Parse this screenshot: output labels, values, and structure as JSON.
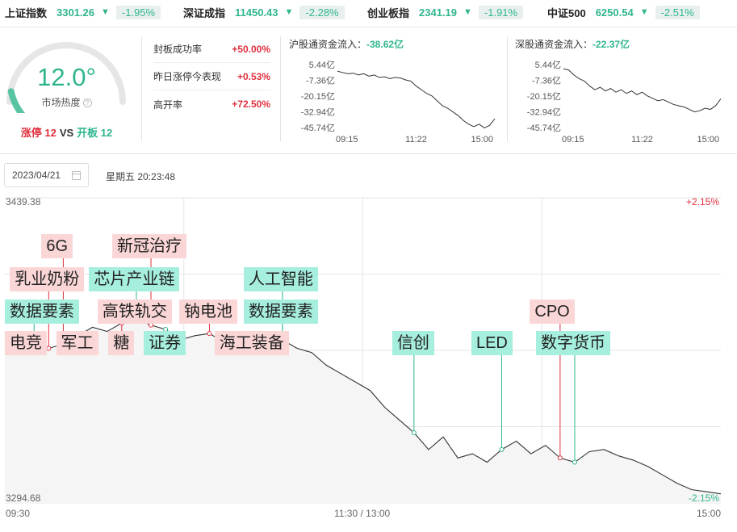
{
  "indices": [
    {
      "name": "上证指数",
      "value": "3301.26",
      "arrow": "▼",
      "change": "-1.95%"
    },
    {
      "name": "深证成指",
      "value": "11450.43",
      "arrow": "▼",
      "change": "-2.28%"
    },
    {
      "name": "创业板指",
      "value": "2341.19",
      "arrow": "▼",
      "change": "-1.91%"
    },
    {
      "name": "中证500",
      "value": "6250.54",
      "arrow": "▼",
      "change": "-2.51%"
    }
  ],
  "heat": {
    "value": "12.0°",
    "value_num": 12.0,
    "label": "市场热度",
    "help_icon": "question-circle-icon",
    "limit_up_label": "涨停 12",
    "vs": "VS",
    "open_board_label": "开板 12"
  },
  "stats": [
    {
      "label": "封板成功率",
      "value": "+50.00%"
    },
    {
      "label": "昨日涨停今表现",
      "value": "+0.53%"
    },
    {
      "label": "高开率",
      "value": "+72.50%"
    }
  ],
  "flows": [
    {
      "title": "沪股通资金流入：",
      "amount": "-38.62亿",
      "y_ticks": [
        "5.44亿",
        "-7.36亿",
        "-20.15亿",
        "-32.94亿",
        "-45.74亿"
      ],
      "x_ticks": [
        "09:15",
        "11:22",
        "15:00"
      ],
      "series": [
        0,
        -1,
        -2,
        -1.5,
        -3,
        -2,
        -4,
        -3,
        -5,
        -4.5,
        -6,
        -5,
        -5.5,
        -7,
        -8,
        -12,
        -15,
        -18,
        -20,
        -24,
        -28,
        -30,
        -33,
        -36,
        -40,
        -43,
        -45,
        -43,
        -46,
        -44,
        -38.6
      ]
    },
    {
      "title": "深股通资金流入：",
      "amount": "-22.37亿",
      "y_ticks": [
        "5.44亿",
        "-7.36亿",
        "-20.15亿",
        "-32.94亿",
        "-45.74亿"
      ],
      "x_ticks": [
        "09:15",
        "11:22",
        "15:00"
      ],
      "series": [
        2,
        1,
        -3,
        -6,
        -8,
        -12,
        -15,
        -13,
        -16,
        -14,
        -17,
        -15,
        -18,
        -16,
        -19,
        -17,
        -20,
        -22,
        -24,
        -23,
        -25,
        -27,
        -28,
        -29,
        -31,
        -33,
        -32,
        -30,
        -31,
        -28,
        -22.4
      ]
    }
  ],
  "date": {
    "value": "2023/04/21",
    "calendar_icon": "calendar-icon",
    "weekday_time": "星期五 20:23:48"
  },
  "chart_data": {
    "type": "line",
    "y_max_label": "3439.38",
    "y_min_label": "3294.68",
    "y_max_pct": "+2.15%",
    "y_min_pct": "-2.15%",
    "ylim": [
      3294.68,
      3439.38
    ],
    "x_ticks": [
      "09:30",
      "11:30 / 13:00",
      "15:00"
    ],
    "values": [
      3375,
      3369,
      3372,
      3368,
      3370,
      3374,
      3378,
      3376,
      3380,
      3382,
      3379,
      3377,
      3372,
      3374,
      3375,
      3371,
      3373,
      3370,
      3374,
      3372,
      3368,
      3366,
      3360,
      3356,
      3352,
      3348,
      3340,
      3334,
      3328,
      3320,
      3326,
      3316,
      3318,
      3314,
      3320,
      3324,
      3318,
      3322,
      3316,
      3314,
      3319,
      3320,
      3317,
      3315,
      3312,
      3308,
      3304,
      3301,
      3300,
      3299
    ],
    "events": [
      {
        "label": "电竞",
        "color": "red",
        "idx": 1
      },
      {
        "label": "数据要素",
        "color": "green",
        "idx": 2
      },
      {
        "label": "乳业奶粉",
        "color": "red",
        "idx": 3
      },
      {
        "label": "6G",
        "color": "red",
        "idx": 4
      },
      {
        "label": "军工",
        "color": "red",
        "idx": 5
      },
      {
        "label": "糖",
        "color": "red",
        "idx": 8
      },
      {
        "label": "高铁轨交",
        "color": "red",
        "idx": 9
      },
      {
        "label": "芯片产业链",
        "color": "green",
        "idx": 9
      },
      {
        "label": "新冠治疗",
        "color": "red",
        "idx": 10
      },
      {
        "label": "证券",
        "color": "green",
        "idx": 11
      },
      {
        "label": "钠电池",
        "color": "red",
        "idx": 14
      },
      {
        "label": "海工装备",
        "color": "red",
        "idx": 17
      },
      {
        "label": "数据要素",
        "color": "green",
        "idx": 19
      },
      {
        "label": "人工智能",
        "color": "green",
        "idx": 19
      },
      {
        "label": "信创",
        "color": "green",
        "idx": 28
      },
      {
        "label": "LED",
        "color": "green",
        "idx": 34
      },
      {
        "label": "CPO",
        "color": "red",
        "idx": 38
      },
      {
        "label": "数字货币",
        "color": "green",
        "idx": 39
      }
    ]
  }
}
